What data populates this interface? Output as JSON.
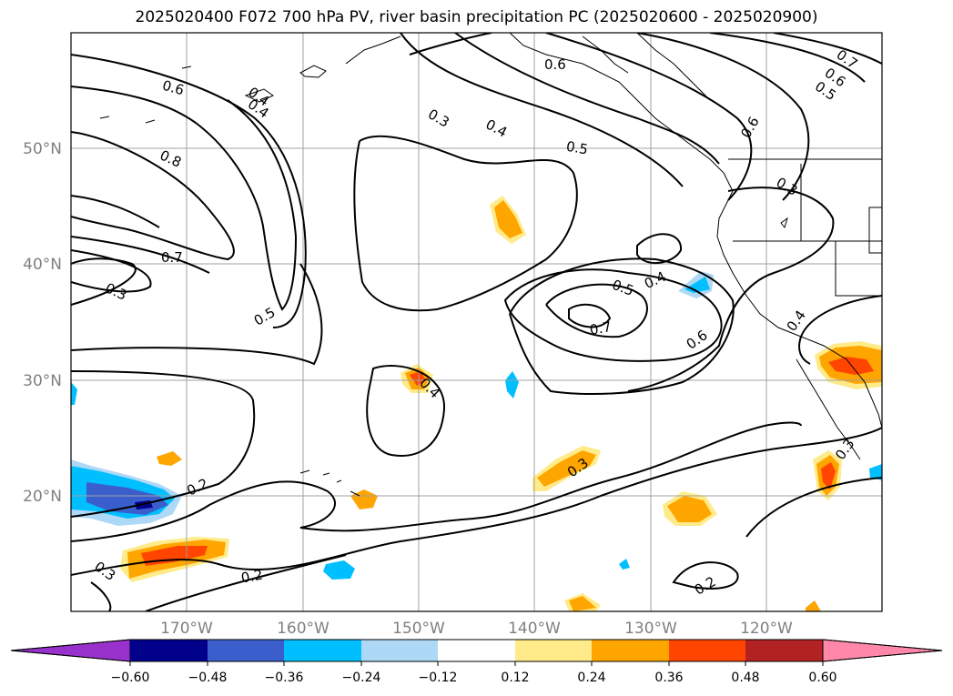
{
  "title": "2025020400 F072 700 hPa PV, river basin precipitation PC (2025020600 - 2025020900)",
  "lat_labels": [
    "50°N",
    "40°N",
    "30°N",
    "20°N"
  ],
  "lon_labels": [
    "170°W",
    "160°W",
    "150°W",
    "140°W",
    "130°W",
    "120°W"
  ],
  "contour_labels": [
    "0.6",
    "0.4",
    "0.8",
    "0.7",
    "0.3",
    "0.5",
    "0.2",
    "0.3",
    "0.2",
    "0.3",
    "0.4",
    "0.5",
    "0.6",
    "0.7",
    "0.6",
    "0.5",
    "0.6",
    "0.3",
    "0.5",
    "0.4",
    "0.7",
    "0.6",
    "0.4",
    "0.3",
    "0.4",
    "0.3",
    "0.2",
    "0.4"
  ],
  "colorbar": {
    "ticks": [
      "−0.60",
      "−0.48",
      "−0.36",
      "−0.24",
      "−0.12",
      "0.12",
      "0.24",
      "0.36",
      "0.48",
      "0.60"
    ],
    "colors": [
      "#9932cc",
      "#00008b",
      "#3a5fcd",
      "#00bfff",
      "#add8f6",
      "#ffffff",
      "#ffeb8a",
      "#ffa500",
      "#ff4500",
      "#b22222",
      "#ff88aa"
    ]
  },
  "map_extent": {
    "lon": [
      -180,
      -110
    ],
    "lat": [
      10,
      60
    ]
  }
}
